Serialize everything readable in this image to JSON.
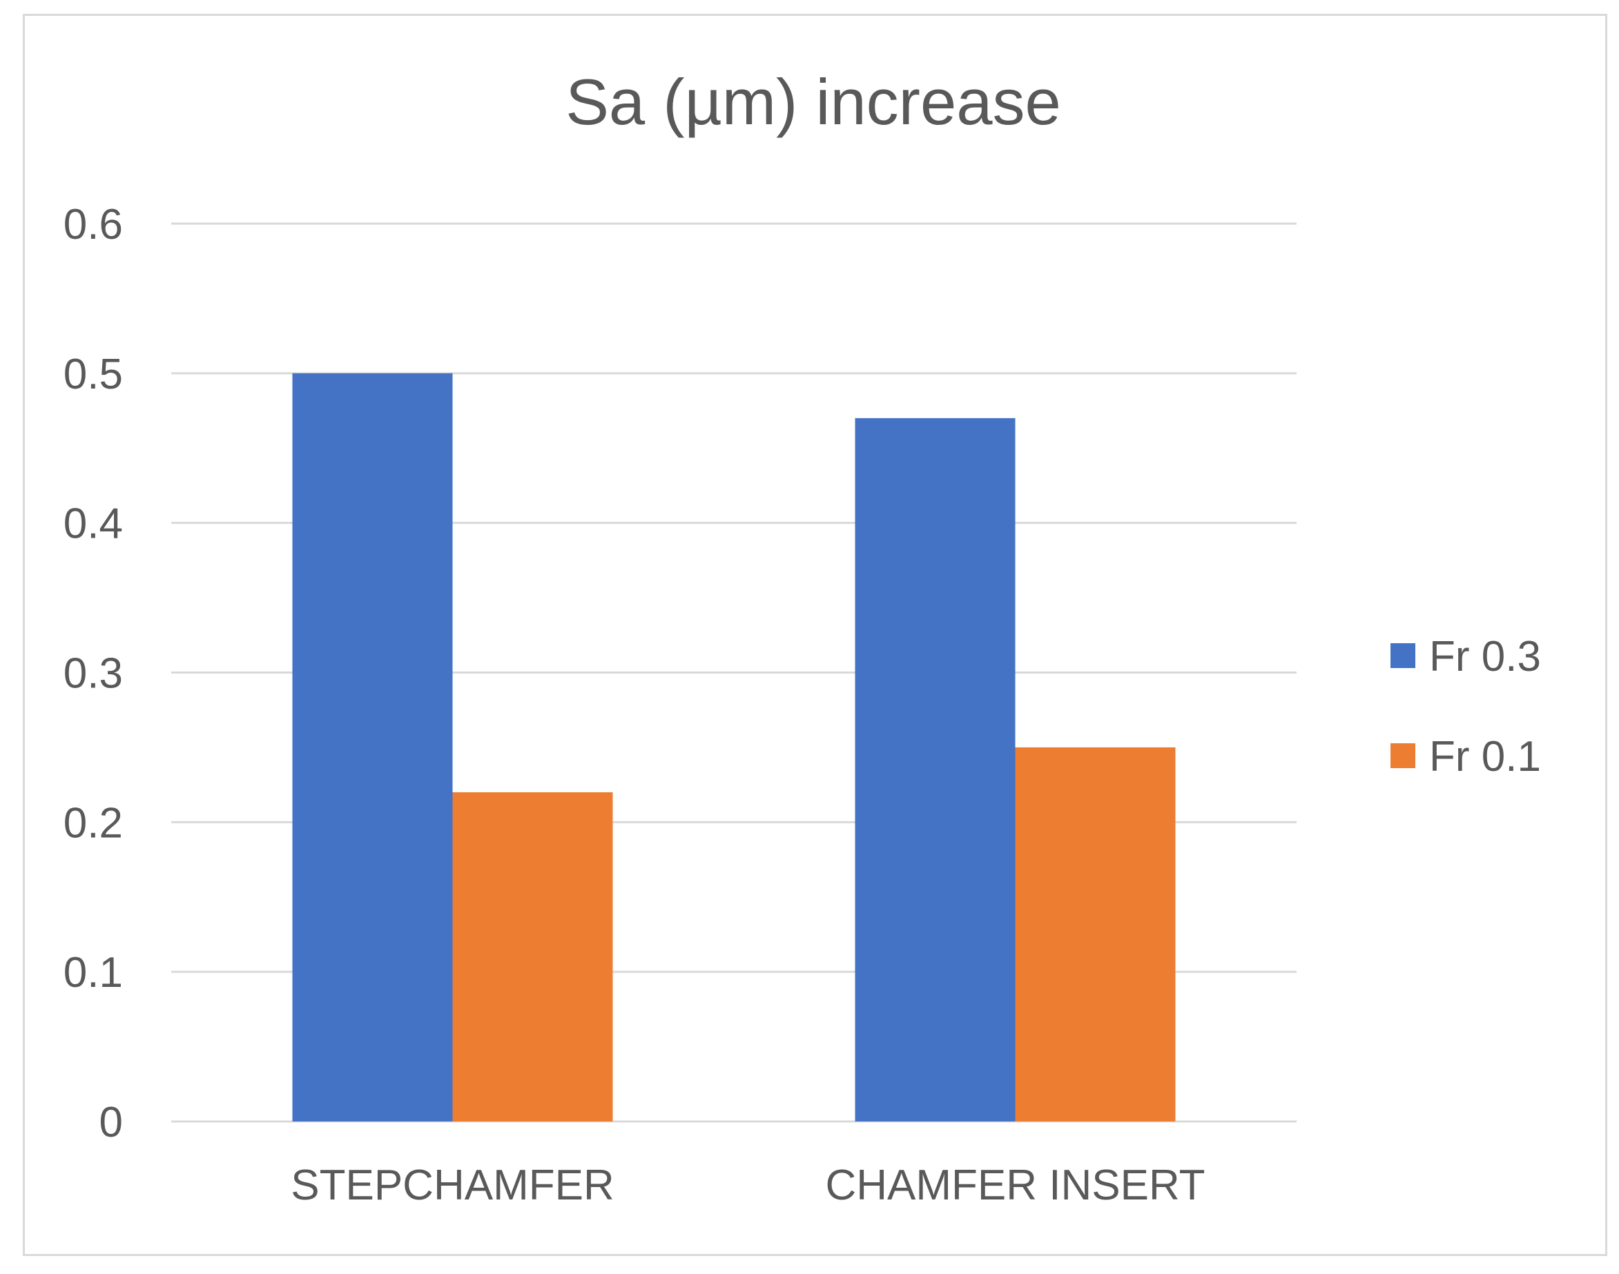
{
  "chart_data": {
    "type": "bar",
    "title": "Sa (µm) increase",
    "xlabel": "",
    "ylabel": "",
    "categories": [
      "STEPCHAMFER",
      "CHAMFER INSERT"
    ],
    "series": [
      {
        "name": "Fr 0.3",
        "values": [
          0.5,
          0.47
        ],
        "color": "#4472C4"
      },
      {
        "name": "Fr 0.1",
        "values": [
          0.22,
          0.25
        ],
        "color": "#ED7D31"
      }
    ],
    "ylim": [
      0,
      0.6
    ],
    "yticks": [
      "0",
      "0.1",
      "0.2",
      "0.3",
      "0.4",
      "0.5",
      "0.6"
    ],
    "grid": true,
    "legend_position": "right",
    "colors": {
      "gridline": "#d9d9d9",
      "text": "#595959",
      "frame": "#d9d9d9"
    }
  }
}
